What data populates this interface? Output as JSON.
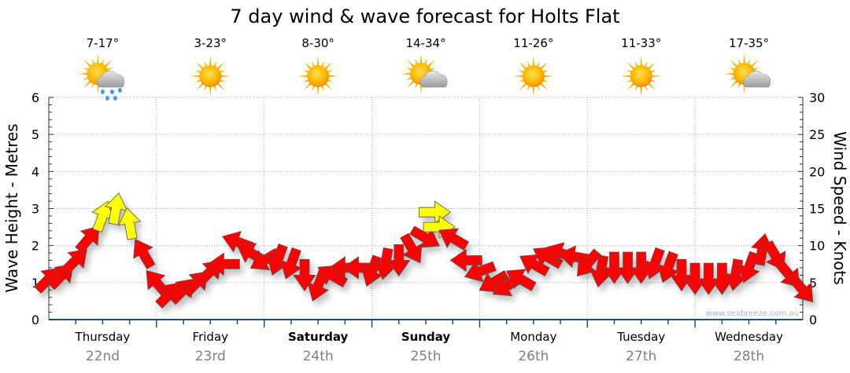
{
  "chart_data": {
    "type": "scatter",
    "title": "7 day wind & wave forecast for Holts Flat",
    "ylabel_left": "Wave Height - Metres",
    "ylabel_right": "Wind Speed - Knots",
    "ylim_left": [
      0,
      6
    ],
    "ylim_right": [
      0,
      30
    ],
    "yticks_left": [
      "0",
      "1",
      "2",
      "3",
      "4",
      "5",
      "6"
    ],
    "yticks_right": [
      "0",
      "5",
      "10",
      "15",
      "20",
      "25",
      "30"
    ],
    "watermark": "www.seabreeze.com.au",
    "grid": true,
    "days": [
      {
        "name": "Thursday",
        "date": "22nd",
        "temp": "7-17°",
        "icon": "sun-cloud-rain",
        "bold": false
      },
      {
        "name": "Friday",
        "date": "23rd",
        "temp": "3-23°",
        "icon": "sun",
        "bold": false
      },
      {
        "name": "Saturday",
        "date": "24th",
        "temp": "8-30°",
        "icon": "sun",
        "bold": true
      },
      {
        "name": "Sunday",
        "date": "25th",
        "temp": "14-34°",
        "icon": "sun-cloud",
        "bold": true
      },
      {
        "name": "Monday",
        "date": "26th",
        "temp": "11-26°",
        "icon": "sun",
        "bold": false
      },
      {
        "name": "Tuesday",
        "date": "27th",
        "temp": "11-33°",
        "icon": "sun",
        "bold": false
      },
      {
        "name": "Wednesday",
        "date": "28th",
        "temp": "17-35°",
        "icon": "sun-cloud",
        "bold": false
      }
    ],
    "wind_color_threshold_knots": 12,
    "colors": {
      "low": "#ff0000",
      "high": "#ffff00",
      "axis": "#1f4e79",
      "grid": "#aaaaaa",
      "date": "#808080"
    },
    "wind": {
      "hours": [
        0,
        3,
        6,
        9,
        12,
        15,
        18,
        21,
        24,
        27,
        30,
        33,
        36,
        39,
        42,
        45,
        48,
        51,
        54,
        57,
        60,
        63,
        66,
        69,
        72,
        75,
        78,
        81,
        84,
        86,
        87,
        90,
        93,
        96,
        99,
        102,
        105,
        108,
        111,
        114,
        117,
        120,
        123,
        126,
        129,
        132,
        135,
        138,
        141,
        144,
        147,
        150,
        153,
        156,
        159,
        162,
        165,
        168
      ],
      "knots": [
        5.5,
        6,
        8,
        11,
        14,
        15,
        13,
        9,
        5,
        3.5,
        4,
        5,
        6.5,
        7.5,
        10.5,
        9,
        8,
        8,
        7.5,
        6,
        4.5,
        6,
        7,
        7,
        6.5,
        7.5,
        8,
        9.5,
        11,
        14.5,
        12.5,
        11,
        8,
        6.5,
        5,
        4.5,
        5.5,
        7.5,
        8.5,
        9,
        8.5,
        7.5,
        6.5,
        7,
        7,
        7,
        7.5,
        7,
        6,
        5.5,
        5.5,
        5.5,
        6,
        7,
        9.5,
        8.5,
        6,
        4
      ],
      "direction_deg": [
        45,
        45,
        45,
        40,
        20,
        10,
        350,
        330,
        320,
        45,
        45,
        45,
        45,
        270,
        290,
        300,
        240,
        200,
        200,
        180,
        200,
        300,
        270,
        270,
        200,
        190,
        180,
        150,
        120,
        90,
        90,
        300,
        270,
        250,
        240,
        240,
        300,
        300,
        300,
        290,
        280,
        220,
        190,
        180,
        180,
        180,
        200,
        200,
        180,
        180,
        180,
        180,
        190,
        200,
        10,
        150,
        140,
        140
      ]
    }
  }
}
